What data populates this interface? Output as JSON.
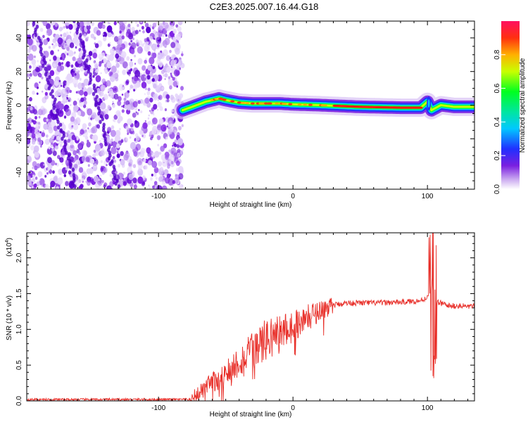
{
  "title": "C2E3.2025.007.16.44.G18",
  "colors": {
    "snr_line": "#e8302a",
    "noise_purple": "#8a2be2",
    "axis": "#000000"
  },
  "chart_data": [
    {
      "type": "heatmap",
      "name": "spectrogram",
      "xlabel": "Height of straight line (km)",
      "ylabel": "Frequency (Hz)",
      "xlim": [
        -198,
        135
      ],
      "ylim": [
        -50,
        50
      ],
      "x_ticks": [
        -100,
        0,
        100
      ],
      "x_tick_labels": [
        "-100",
        "0",
        "100"
      ],
      "y_ticks": [
        -40,
        -20,
        0,
        20,
        40
      ],
      "y_tick_labels": [
        "-40",
        "-20",
        "0",
        "20",
        "40"
      ],
      "noise_region_x": [
        -198,
        -82
      ],
      "signal_start_x": -82,
      "signal_track": [
        {
          "x": -82,
          "y": -3
        },
        {
          "x": -75,
          "y": -1
        },
        {
          "x": -65,
          "y": 2
        },
        {
          "x": -55,
          "y": 4
        },
        {
          "x": -50,
          "y": 3
        },
        {
          "x": -40,
          "y": 1.5
        },
        {
          "x": -30,
          "y": 1
        },
        {
          "x": -20,
          "y": 1
        },
        {
          "x": -10,
          "y": 1
        },
        {
          "x": 0,
          "y": 0.5
        },
        {
          "x": 20,
          "y": 0
        },
        {
          "x": 50,
          "y": -1
        },
        {
          "x": 80,
          "y": -1.5
        },
        {
          "x": 95,
          "y": -1.5
        },
        {
          "x": 100,
          "y": 2
        },
        {
          "x": 103,
          "y": -3
        },
        {
          "x": 110,
          "y": 0
        },
        {
          "x": 120,
          "y": -1
        },
        {
          "x": 135,
          "y": -1
        }
      ],
      "colorbar": {
        "label": "Normalized spectral amplitude",
        "range": [
          0,
          1
        ],
        "ticks": [
          0.0,
          0.2,
          0.4,
          0.6,
          0.8
        ],
        "tick_labels": [
          "0.0",
          "0.2",
          "0.4",
          "0.6",
          "0.8"
        ]
      }
    },
    {
      "type": "line",
      "name": "snr",
      "xlabel": "Height of straight line (km)",
      "ylabel": "SNR (10 * v/v)",
      "y_multiplier_label": "(x10",
      "y_multiplier_exp": "4",
      "y_multiplier_close": ")",
      "xlim": [
        -198,
        135
      ],
      "ylim": [
        0,
        2.35
      ],
      "x_ticks": [
        -100,
        0,
        100
      ],
      "x_tick_labels": [
        "-100",
        "0",
        "100"
      ],
      "y_ticks": [
        0.0,
        0.5,
        1.0,
        1.5,
        2.0
      ],
      "y_tick_labels": [
        "0.0",
        "0.5",
        "1.0",
        "1.5",
        "2.0"
      ],
      "series": [
        {
          "x": [
            -198,
            -150,
            -100,
            -77,
            -70,
            -60,
            -50,
            -40,
            -30,
            -20,
            -10,
            0,
            10,
            20,
            30,
            40,
            60,
            80,
            95,
            100,
            103,
            105,
            108,
            115,
            135
          ],
          "y": [
            0.02,
            0.02,
            0.02,
            0.02,
            0.1,
            0.25,
            0.4,
            0.55,
            0.7,
            0.85,
            0.95,
            1.05,
            1.15,
            1.27,
            1.34,
            1.37,
            1.37,
            1.38,
            1.4,
            1.45,
            1.6,
            1.3,
            1.38,
            1.33,
            1.32
          ]
        }
      ]
    }
  ]
}
